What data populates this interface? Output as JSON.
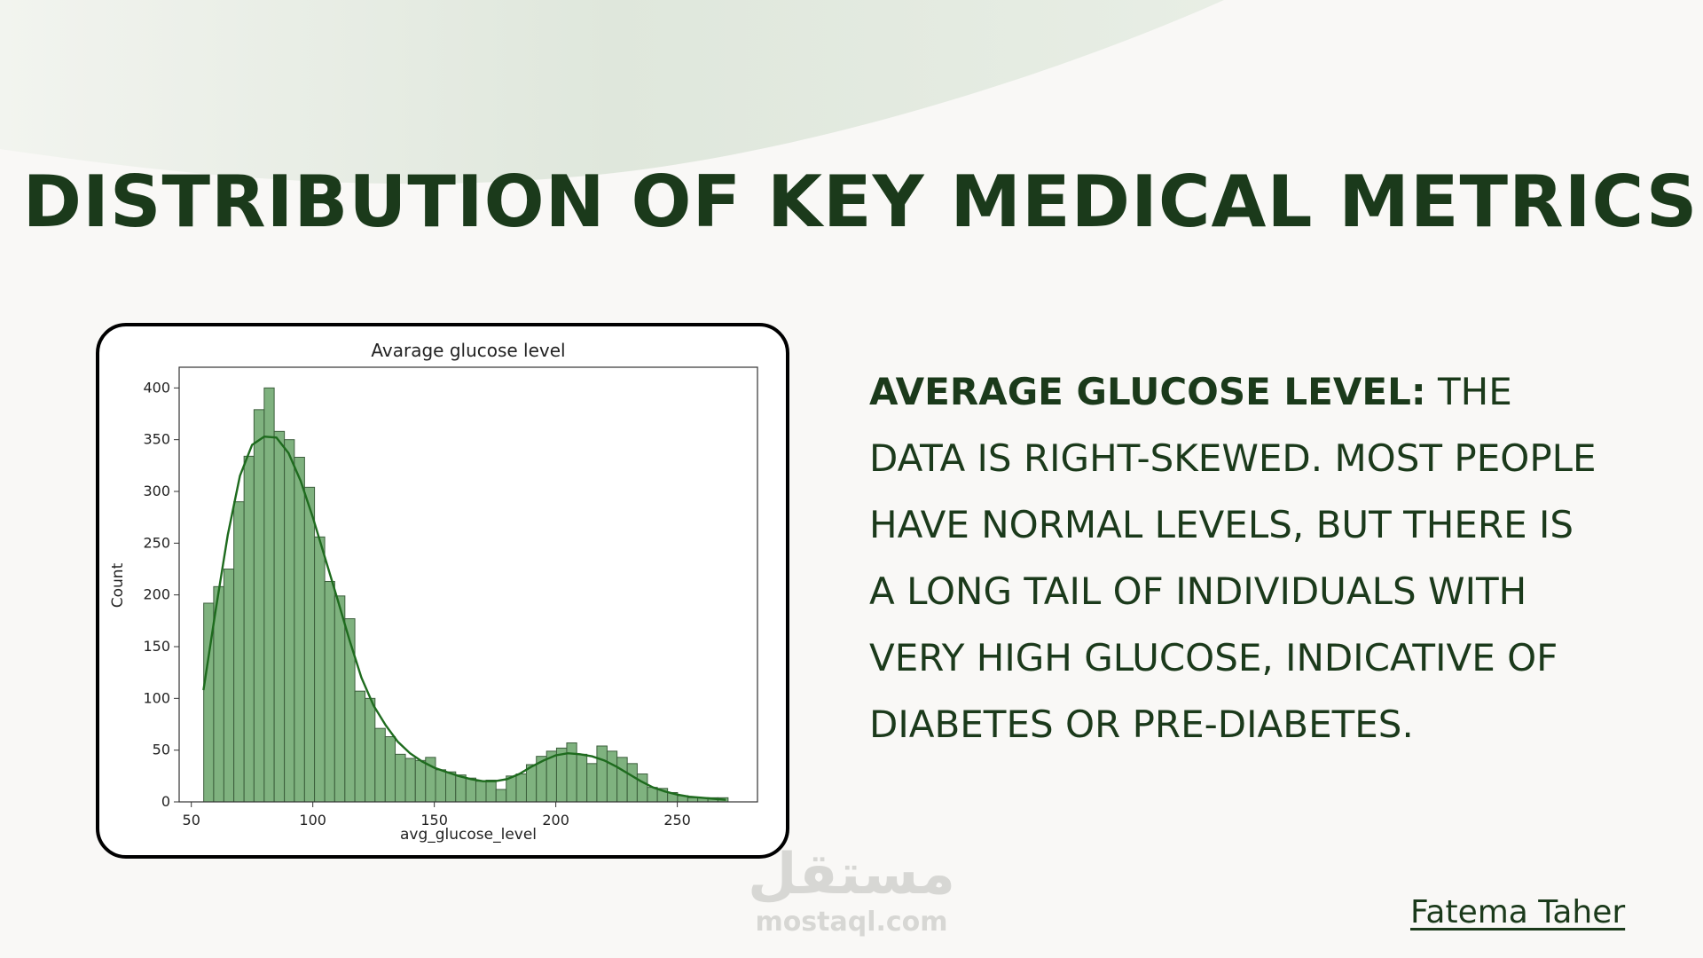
{
  "slide": {
    "title": "DISTRIBUTION OF KEY MEDICAL METRICS",
    "description_lead": "AVERAGE GLUCOSE LEVEL:",
    "description_body": "THE DATA IS RIGHT-SKEWED. MOST PEOPLE HAVE NORMAL LEVELS, BUT THERE IS A LONG TAIL OF INDIVIDUALS WITH VERY HIGH GLUCOSE, INDICATIVE OF DIABETES OR PRE-DIABETES.",
    "author": "Fatema Taher",
    "watermark_script": "مستقل",
    "watermark_url": "mostaql.com",
    "colors": {
      "title": "#1b3a1b",
      "wave": "#dde6da",
      "bar_fill": "#7fb27f",
      "bar_edge": "#3b5e3b",
      "kde": "#1e6b1e"
    }
  },
  "chart_data": {
    "type": "bar",
    "title": "Avarage glucose level",
    "xlabel": "avg_glucose_level",
    "ylabel": "Count",
    "xlim": [
      45,
      283
    ],
    "ylim": [
      0,
      420
    ],
    "xticks": [
      50,
      100,
      150,
      200,
      250
    ],
    "yticks": [
      0,
      50,
      100,
      150,
      200,
      250,
      300,
      350,
      400
    ],
    "bins": [
      {
        "x0": 55.1,
        "x1": 59.2,
        "count": 192
      },
      {
        "x0": 59.2,
        "x1": 63.4,
        "count": 208
      },
      {
        "x0": 63.4,
        "x1": 67.5,
        "count": 225
      },
      {
        "x0": 67.5,
        "x1": 71.7,
        "count": 290
      },
      {
        "x0": 71.7,
        "x1": 75.8,
        "count": 334
      },
      {
        "x0": 75.8,
        "x1": 80.0,
        "count": 379
      },
      {
        "x0": 80.0,
        "x1": 84.1,
        "count": 400
      },
      {
        "x0": 84.1,
        "x1": 88.3,
        "count": 358
      },
      {
        "x0": 88.3,
        "x1": 92.4,
        "count": 350
      },
      {
        "x0": 92.4,
        "x1": 96.6,
        "count": 333
      },
      {
        "x0": 96.6,
        "x1": 100.7,
        "count": 304
      },
      {
        "x0": 100.7,
        "x1": 104.9,
        "count": 256
      },
      {
        "x0": 104.9,
        "x1": 109.0,
        "count": 213
      },
      {
        "x0": 109.0,
        "x1": 113.2,
        "count": 199
      },
      {
        "x0": 113.2,
        "x1": 117.3,
        "count": 177
      },
      {
        "x0": 117.3,
        "x1": 121.5,
        "count": 107
      },
      {
        "x0": 121.5,
        "x1": 125.6,
        "count": 100
      },
      {
        "x0": 125.6,
        "x1": 129.8,
        "count": 71
      },
      {
        "x0": 129.8,
        "x1": 133.9,
        "count": 63
      },
      {
        "x0": 133.9,
        "x1": 138.1,
        "count": 46
      },
      {
        "x0": 138.1,
        "x1": 142.2,
        "count": 42
      },
      {
        "x0": 142.2,
        "x1": 146.4,
        "count": 40
      },
      {
        "x0": 146.4,
        "x1": 150.5,
        "count": 43
      },
      {
        "x0": 150.5,
        "x1": 154.7,
        "count": 31
      },
      {
        "x0": 154.7,
        "x1": 158.8,
        "count": 29
      },
      {
        "x0": 158.8,
        "x1": 163.0,
        "count": 26
      },
      {
        "x0": 163.0,
        "x1": 167.1,
        "count": 23
      },
      {
        "x0": 167.1,
        "x1": 171.3,
        "count": 20
      },
      {
        "x0": 171.3,
        "x1": 175.4,
        "count": 21
      },
      {
        "x0": 175.4,
        "x1": 179.6,
        "count": 12
      },
      {
        "x0": 179.6,
        "x1": 183.7,
        "count": 25
      },
      {
        "x0": 183.7,
        "x1": 187.9,
        "count": 27
      },
      {
        "x0": 187.9,
        "x1": 192.0,
        "count": 36
      },
      {
        "x0": 192.0,
        "x1": 196.2,
        "count": 44
      },
      {
        "x0": 196.2,
        "x1": 200.3,
        "count": 49
      },
      {
        "x0": 200.3,
        "x1": 204.5,
        "count": 52
      },
      {
        "x0": 204.5,
        "x1": 208.6,
        "count": 57
      },
      {
        "x0": 208.6,
        "x1": 212.8,
        "count": 46
      },
      {
        "x0": 212.8,
        "x1": 216.9,
        "count": 37
      },
      {
        "x0": 216.9,
        "x1": 221.1,
        "count": 54
      },
      {
        "x0": 221.1,
        "x1": 225.2,
        "count": 49
      },
      {
        "x0": 225.2,
        "x1": 229.4,
        "count": 43
      },
      {
        "x0": 229.4,
        "x1": 233.5,
        "count": 37
      },
      {
        "x0": 233.5,
        "x1": 237.7,
        "count": 27
      },
      {
        "x0": 237.7,
        "x1": 241.8,
        "count": 14
      },
      {
        "x0": 241.8,
        "x1": 246.0,
        "count": 13
      },
      {
        "x0": 246.0,
        "x1": 250.1,
        "count": 9
      },
      {
        "x0": 250.1,
        "x1": 254.3,
        "count": 6
      },
      {
        "x0": 254.3,
        "x1": 258.4,
        "count": 4
      },
      {
        "x0": 258.4,
        "x1": 262.6,
        "count": 4
      },
      {
        "x0": 262.6,
        "x1": 266.7,
        "count": 4
      },
      {
        "x0": 266.7,
        "x1": 270.9,
        "count": 4
      }
    ],
    "kde": [
      [
        55,
        108
      ],
      [
        60,
        185
      ],
      [
        65,
        258
      ],
      [
        70,
        315
      ],
      [
        75,
        345
      ],
      [
        80,
        353
      ],
      [
        85,
        352
      ],
      [
        90,
        337
      ],
      [
        95,
        310
      ],
      [
        100,
        275
      ],
      [
        105,
        236
      ],
      [
        110,
        197
      ],
      [
        115,
        157
      ],
      [
        120,
        120
      ],
      [
        125,
        93
      ],
      [
        130,
        74
      ],
      [
        135,
        58
      ],
      [
        140,
        47
      ],
      [
        145,
        39
      ],
      [
        150,
        33
      ],
      [
        155,
        29
      ],
      [
        160,
        25
      ],
      [
        165,
        22
      ],
      [
        170,
        20
      ],
      [
        175,
        20
      ],
      [
        180,
        22
      ],
      [
        185,
        27
      ],
      [
        190,
        34
      ],
      [
        195,
        40
      ],
      [
        200,
        45
      ],
      [
        205,
        47
      ],
      [
        210,
        46
      ],
      [
        215,
        44
      ],
      [
        220,
        40
      ],
      [
        225,
        34
      ],
      [
        230,
        27
      ],
      [
        235,
        20
      ],
      [
        240,
        14
      ],
      [
        245,
        10
      ],
      [
        250,
        7
      ],
      [
        255,
        5
      ],
      [
        260,
        4
      ],
      [
        265,
        3
      ],
      [
        270,
        2
      ]
    ]
  }
}
